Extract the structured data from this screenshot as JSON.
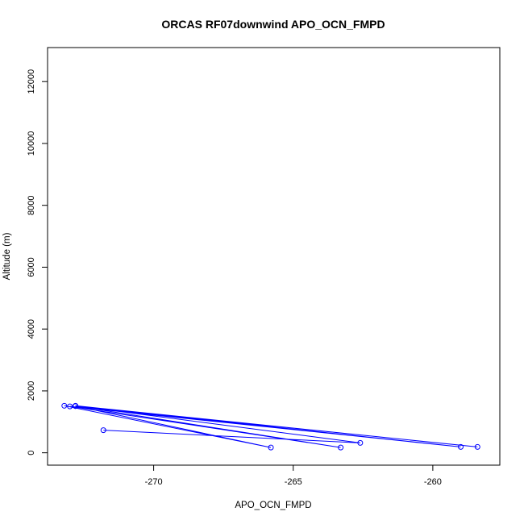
{
  "chart_data": {
    "type": "scatter",
    "title": "ORCAS RF07downwind APO_OCN_FMPD",
    "xlabel": "APO_OCN_FMPD",
    "ylabel": "Altitude (m)",
    "xlim": [
      -273.8,
      -257.6
    ],
    "ylim": [
      -400,
      13100
    ],
    "x_ticks": [
      -270,
      -265,
      -260
    ],
    "x_tick_labels": [
      "-270",
      "-265",
      "-260"
    ],
    "y_ticks": [
      0,
      2000,
      4000,
      6000,
      8000,
      10000,
      12000
    ],
    "y_tick_labels": [
      "0",
      "2000",
      "4000",
      "6000",
      "8000",
      "10000",
      "12000"
    ],
    "grid": false,
    "legend": "none",
    "series": [
      {
        "color": "#0000ff",
        "marker": "open-circle",
        "connect_points": true,
        "points": [
          {
            "x": -271.8,
            "y": 730
          },
          {
            "x": -262.6,
            "y": 320
          },
          {
            "x": -272.8,
            "y": 1520
          },
          {
            "x": -258.4,
            "y": 190
          },
          {
            "x": -272.8,
            "y": 1510
          },
          {
            "x": -263.3,
            "y": 170
          },
          {
            "x": -273.0,
            "y": 1500
          },
          {
            "x": -259.0,
            "y": 190
          },
          {
            "x": -272.8,
            "y": 1510
          },
          {
            "x": -265.8,
            "y": 170
          },
          {
            "x": -273.2,
            "y": 1520
          }
        ]
      }
    ]
  }
}
